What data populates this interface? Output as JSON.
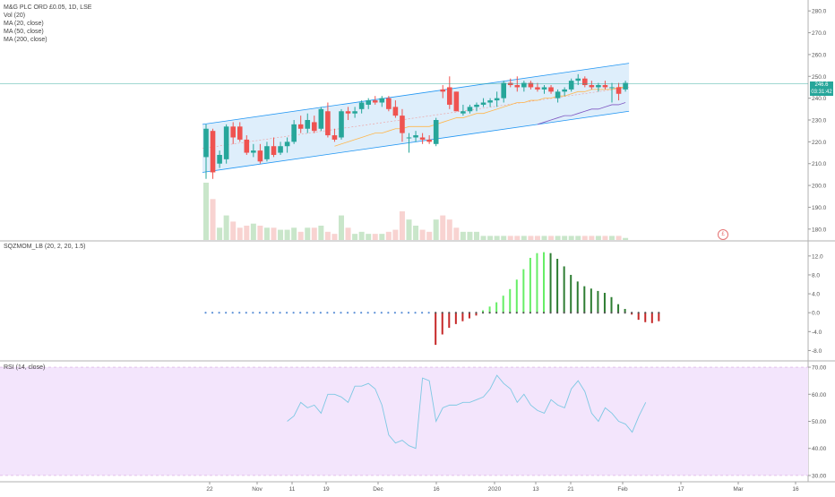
{
  "main_pane": {
    "symbol": "M&G PLC ORD £0.05, 1D, LSE",
    "indicators": [
      "Vol (20)",
      "MA (20, close)",
      "MA (50, close)",
      "MA (200, close)"
    ],
    "currency_badge": "£",
    "price_ticks": [
      "280.0",
      "270.0",
      "260.0",
      "250.0",
      "240.0",
      "230.0",
      "220.0",
      "210.0",
      "200.0",
      "190.0",
      "180.0"
    ],
    "last_price_label": "246.6",
    "countdown_label": "03:31:42"
  },
  "squeeze_pane": {
    "title": "SQZMOM_LB (20, 2, 20, 1.5)",
    "ticks": [
      "12.0",
      "8.0",
      "4.0",
      "0.0",
      "-4.0",
      "-8.0"
    ]
  },
  "rsi_pane": {
    "title": "RSI (14, close)",
    "ticks": [
      "70.00",
      "60.00",
      "50.00",
      "40.00",
      "30.00"
    ]
  },
  "x_axis": {
    "ticks": [
      "22",
      "Nov",
      "11",
      "19",
      "Dec",
      "16",
      "2020",
      "13",
      "21",
      "Feb",
      "17",
      "Mar",
      "16"
    ]
  },
  "colors": {
    "up": "#26a69a",
    "down": "#ef5350",
    "channel_fill": "#d6eafa",
    "channel_line": "#2196f3",
    "rsi_band": "#f3e5fc",
    "rsi_line": "#7ec8e3",
    "last_price": "#26a69a",
    "sqz_dark_green": "#2e7d32",
    "sqz_light_green": "#66ee66",
    "sqz_red": "#c62828"
  },
  "chart_data": [
    {
      "type": "candlestick",
      "yaxis_range": [
        175,
        285
      ],
      "candles": [
        {
          "o": 213,
          "h": 228,
          "l": 203,
          "c": 226
        },
        {
          "o": 225,
          "h": 226,
          "l": 203,
          "c": 206
        },
        {
          "o": 210,
          "h": 216,
          "l": 208,
          "c": 214
        },
        {
          "o": 212,
          "h": 228,
          "l": 210,
          "c": 227
        },
        {
          "o": 227,
          "h": 229,
          "l": 219,
          "c": 222
        },
        {
          "o": 227,
          "h": 229,
          "l": 220,
          "c": 221
        },
        {
          "o": 221,
          "h": 223,
          "l": 214,
          "c": 215
        },
        {
          "o": 215,
          "h": 219,
          "l": 213,
          "c": 216
        },
        {
          "o": 216,
          "h": 219,
          "l": 210,
          "c": 211
        },
        {
          "o": 212,
          "h": 220,
          "l": 211,
          "c": 218
        },
        {
          "o": 218,
          "h": 222,
          "l": 213,
          "c": 214
        },
        {
          "o": 215,
          "h": 220,
          "l": 214,
          "c": 218
        },
        {
          "o": 218,
          "h": 222,
          "l": 215,
          "c": 220
        },
        {
          "o": 220,
          "h": 230,
          "l": 219,
          "c": 228
        },
        {
          "o": 228,
          "h": 232,
          "l": 224,
          "c": 226
        },
        {
          "o": 226,
          "h": 233,
          "l": 224,
          "c": 230
        },
        {
          "o": 229,
          "h": 232,
          "l": 224,
          "c": 225
        },
        {
          "o": 226,
          "h": 236,
          "l": 225,
          "c": 235
        },
        {
          "o": 234,
          "h": 238,
          "l": 222,
          "c": 223
        },
        {
          "o": 223,
          "h": 226,
          "l": 220,
          "c": 221
        },
        {
          "o": 222,
          "h": 235,
          "l": 221,
          "c": 234
        },
        {
          "o": 234,
          "h": 236,
          "l": 230,
          "c": 233
        },
        {
          "o": 233,
          "h": 236,
          "l": 231,
          "c": 234
        },
        {
          "o": 235,
          "h": 239,
          "l": 233,
          "c": 238
        },
        {
          "o": 237,
          "h": 240,
          "l": 235,
          "c": 239
        },
        {
          "o": 239,
          "h": 241,
          "l": 237,
          "c": 238
        },
        {
          "o": 238,
          "h": 241,
          "l": 236,
          "c": 240
        },
        {
          "o": 240,
          "h": 241,
          "l": 234,
          "c": 235
        },
        {
          "o": 236,
          "h": 239,
          "l": 231,
          "c": 232
        },
        {
          "o": 232,
          "h": 235,
          "l": 220,
          "c": 224
        },
        {
          "o": 222,
          "h": 224,
          "l": 215,
          "c": 222
        },
        {
          "o": 222,
          "h": 225,
          "l": 220,
          "c": 223
        },
        {
          "o": 222,
          "h": 224,
          "l": 219,
          "c": 221
        },
        {
          "o": 221,
          "h": 223,
          "l": 219,
          "c": 220
        },
        {
          "o": 219,
          "h": 231,
          "l": 218,
          "c": 230
        },
        {
          "o": 244,
          "h": 246,
          "l": 240,
          "c": 243
        },
        {
          "o": 245,
          "h": 250,
          "l": 235,
          "c": 237
        },
        {
          "o": 243,
          "h": 243,
          "l": 234,
          "c": 234
        },
        {
          "o": 233,
          "h": 237,
          "l": 232,
          "c": 234
        },
        {
          "o": 234,
          "h": 237,
          "l": 233,
          "c": 236
        },
        {
          "o": 236,
          "h": 238,
          "l": 234,
          "c": 237
        },
        {
          "o": 237,
          "h": 240,
          "l": 236,
          "c": 238
        },
        {
          "o": 238,
          "h": 240,
          "l": 236,
          "c": 239
        },
        {
          "o": 239,
          "h": 243,
          "l": 236,
          "c": 240
        },
        {
          "o": 240,
          "h": 248,
          "l": 238,
          "c": 247
        },
        {
          "o": 247,
          "h": 249,
          "l": 245,
          "c": 246
        },
        {
          "o": 246,
          "h": 250,
          "l": 243,
          "c": 245
        },
        {
          "o": 245,
          "h": 248,
          "l": 243,
          "c": 247
        },
        {
          "o": 247,
          "h": 248,
          "l": 244,
          "c": 245
        },
        {
          "o": 245,
          "h": 247,
          "l": 243,
          "c": 244
        },
        {
          "o": 244,
          "h": 246,
          "l": 242,
          "c": 245
        },
        {
          "o": 245,
          "h": 246,
          "l": 242,
          "c": 243
        },
        {
          "o": 240,
          "h": 244,
          "l": 238,
          "c": 243
        },
        {
          "o": 243,
          "h": 245,
          "l": 241,
          "c": 244
        },
        {
          "o": 244,
          "h": 249,
          "l": 243,
          "c": 248
        },
        {
          "o": 248,
          "h": 251,
          "l": 246,
          "c": 249
        },
        {
          "o": 249,
          "h": 250,
          "l": 245,
          "c": 246
        },
        {
          "o": 246,
          "h": 248,
          "l": 244,
          "c": 245
        },
        {
          "o": 245,
          "h": 247,
          "l": 243,
          "c": 246
        },
        {
          "o": 246,
          "h": 248,
          "l": 244,
          "c": 245
        },
        {
          "o": 245,
          "h": 247,
          "l": 238,
          "c": 245
        },
        {
          "o": 245,
          "h": 247,
          "l": 239,
          "c": 242
        },
        {
          "o": 244,
          "h": 248,
          "l": 243,
          "c": 247
        }
      ],
      "volume": [
        28,
        20,
        6,
        12,
        9,
        6,
        7,
        8,
        7,
        6,
        6,
        5,
        5,
        6,
        4,
        6,
        6,
        7,
        4,
        3,
        12,
        6,
        3,
        4,
        3,
        3,
        3,
        4,
        5,
        14,
        10,
        7,
        5,
        4,
        10,
        12,
        10,
        6,
        4,
        4,
        4,
        2,
        2,
        2,
        2,
        2,
        2,
        2,
        2,
        2,
        2,
        2,
        2,
        2,
        2,
        2,
        2,
        2,
        2,
        2,
        2,
        2,
        1
      ],
      "ma20": [
        null,
        null,
        null,
        null,
        null,
        null,
        null,
        null,
        null,
        null,
        null,
        null,
        null,
        null,
        null,
        null,
        null,
        null,
        null,
        218,
        219,
        220,
        221,
        222,
        223,
        224,
        224,
        225,
        226,
        226,
        227,
        227,
        227,
        227,
        228,
        229,
        230,
        231,
        231,
        232,
        233,
        233,
        234,
        235,
        236,
        237,
        238,
        238,
        239,
        239,
        240,
        240,
        241,
        241,
        242,
        243,
        243,
        244,
        244,
        244,
        244,
        245,
        245
      ],
      "ma50": [
        null,
        null,
        null,
        null,
        null,
        null,
        null,
        null,
        null,
        null,
        null,
        null,
        null,
        null,
        null,
        null,
        null,
        null,
        null,
        null,
        null,
        null,
        null,
        null,
        null,
        null,
        null,
        null,
        null,
        null,
        null,
        null,
        null,
        null,
        null,
        null,
        null,
        null,
        null,
        null,
        null,
        null,
        null,
        null,
        null,
        null,
        null,
        null,
        null,
        228,
        229,
        230,
        231,
        232,
        232,
        233,
        234,
        235,
        235,
        236,
        237,
        237,
        238
      ],
      "channel": {
        "upper_start": 228,
        "upper_end": 256,
        "lower_start": 206,
        "lower_end": 234
      }
    },
    {
      "type": "bar",
      "name": "squeeze",
      "yaxis_range": [
        -10,
        15
      ],
      "values": [
        0,
        0,
        0,
        0,
        0,
        0,
        0,
        0,
        0,
        0,
        0,
        0,
        0,
        0,
        0,
        0,
        0,
        0,
        0,
        0,
        0,
        0,
        0,
        0,
        0,
        0,
        0,
        0,
        0,
        0,
        0,
        0,
        0,
        0,
        -6.8,
        -4.6,
        -3.2,
        -2.4,
        -1.8,
        -1.2,
        -0.6,
        0.5,
        1.3,
        2.2,
        3.6,
        5,
        7,
        9.2,
        11.6,
        12.6,
        12.8,
        12.6,
        11.4,
        9.8,
        8,
        6.6,
        5.6,
        5.1,
        4.6,
        4.2,
        3.3,
        1.8,
        0.8,
        -0.4,
        -1.5,
        -2,
        -2.2,
        -1.8
      ],
      "bar_colors": [
        "dg",
        "dg",
        "dg",
        "dg",
        "dg",
        "dg",
        "dg",
        "dg",
        "dg",
        "dg",
        "dg",
        "dg",
        "dg",
        "dg",
        "dg",
        "dg",
        "dg",
        "dg",
        "dg",
        "dg",
        "dg",
        "dg",
        "dg",
        "dg",
        "dg",
        "dg",
        "dg",
        "dg",
        "dg",
        "dg",
        "dg",
        "dg",
        "dg",
        "dg",
        "r",
        "r",
        "r",
        "r",
        "r",
        "r",
        "r",
        "lg",
        "lg",
        "lg",
        "lg",
        "lg",
        "lg",
        "lg",
        "lg",
        "lg",
        "lg",
        "dg",
        "dg",
        "dg",
        "dg",
        "dg",
        "dg",
        "dg",
        "dg",
        "dg",
        "dg",
        "dg",
        "dg",
        "r",
        "r",
        "r",
        "r",
        "r"
      ]
    },
    {
      "type": "line",
      "name": "rsi",
      "yaxis_range": [
        28,
        72
      ],
      "start_index": 12,
      "values": [
        50,
        52,
        57,
        55,
        56,
        53,
        60,
        60,
        59,
        57,
        63,
        63,
        64,
        62,
        56,
        45,
        42,
        43,
        41,
        40,
        66,
        65,
        50,
        55,
        56,
        56,
        57,
        57,
        58,
        59,
        62,
        67,
        64,
        62,
        57,
        60,
        56,
        54,
        53,
        58,
        56,
        55,
        62,
        65,
        61,
        53,
        50,
        55,
        53,
        50,
        49,
        46,
        52,
        57
      ]
    }
  ]
}
